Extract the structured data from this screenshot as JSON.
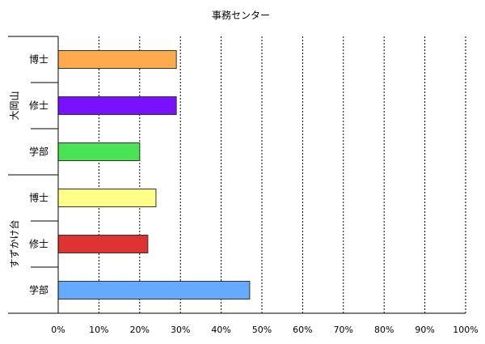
{
  "chart_data": {
    "type": "bar",
    "orientation": "horizontal",
    "title": "事務センター",
    "xlabel": "",
    "ylabel": "",
    "xlim": [
      0,
      100
    ],
    "x_ticks": [
      "0%",
      "10%",
      "20%",
      "30%",
      "40%",
      "50%",
      "60%",
      "70%",
      "80%",
      "90%",
      "100%"
    ],
    "grid": "vertical-dashed",
    "legend": "none",
    "groups": [
      {
        "name": "大岡山",
        "items": [
          {
            "label": "博士",
            "value": 29,
            "color": "#ffaa4c"
          },
          {
            "label": "修士",
            "value": 29,
            "color": "#7711ff"
          },
          {
            "label": "学部",
            "value": 20,
            "color": "#4ce255"
          }
        ]
      },
      {
        "name": "すずかけ台",
        "items": [
          {
            "label": "博士",
            "value": 24,
            "color": "#ffff88"
          },
          {
            "label": "修士",
            "value": 22,
            "color": "#dd3333"
          },
          {
            "label": "学部",
            "value": 47,
            "color": "#66aaff"
          }
        ]
      }
    ]
  }
}
